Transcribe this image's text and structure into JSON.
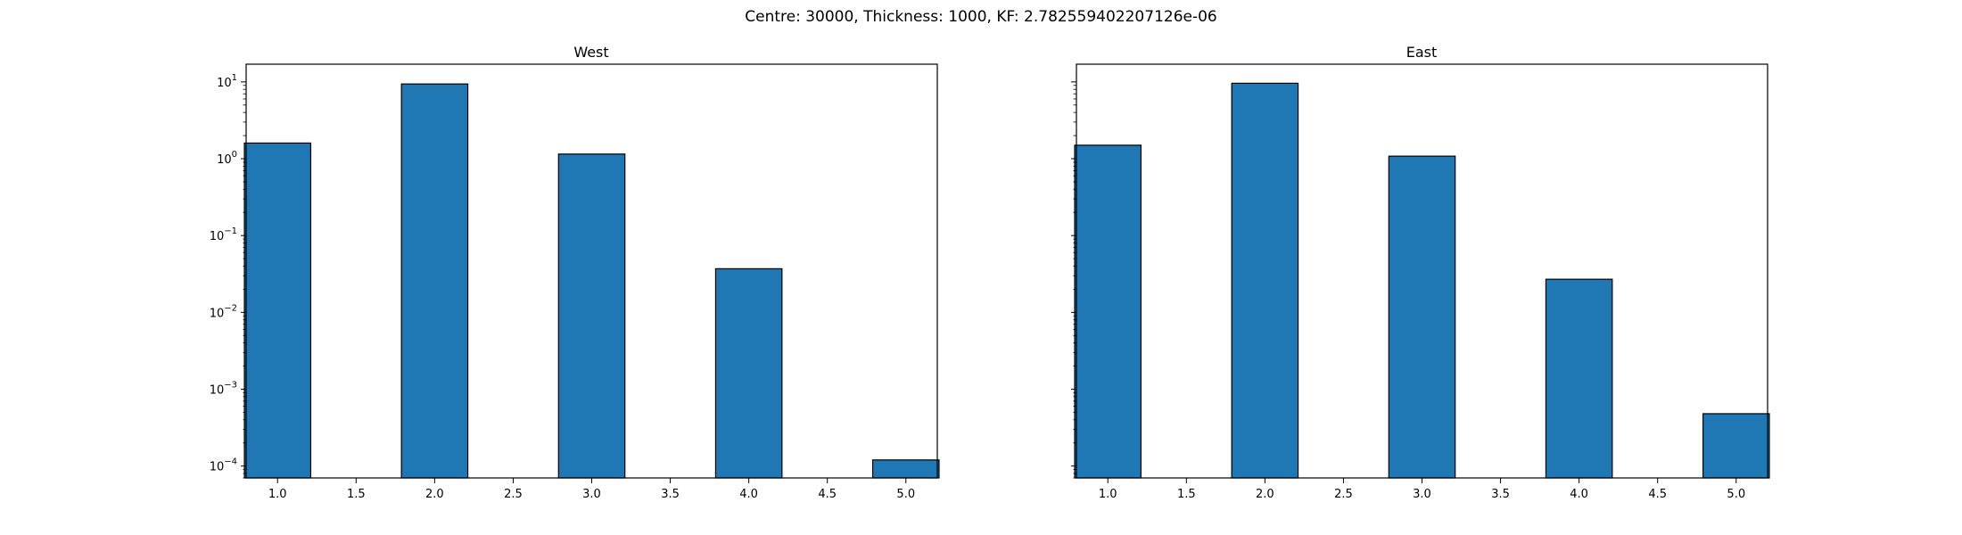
{
  "figure": {
    "suptitle": "Centre: 30000, Thickness: 1000, KF: 2.782559402207126e-06"
  },
  "chart_data": [
    {
      "type": "bar",
      "title": "West",
      "xlabel": "",
      "ylabel": "",
      "yscale": "log",
      "xlim": [
        0.8,
        5.2
      ],
      "ylim": [
        7e-05,
        17
      ],
      "x": [
        1.0,
        2.0,
        3.0,
        4.0,
        5.0
      ],
      "values": [
        1.6,
        9.4,
        1.15,
        0.037,
        0.00012
      ],
      "bar_color": "#1f77b4",
      "edge_color": "#000000",
      "xticks": [
        "1.0",
        "1.5",
        "2.0",
        "2.5",
        "3.0",
        "3.5",
        "4.0",
        "4.5",
        "5.0"
      ],
      "yticks": [
        {
          "base": "10",
          "exp": "1"
        },
        {
          "base": "10",
          "exp": "0"
        },
        {
          "base": "10",
          "exp": "−1"
        },
        {
          "base": "10",
          "exp": "−2"
        },
        {
          "base": "10",
          "exp": "−3"
        },
        {
          "base": "10",
          "exp": "−4"
        }
      ],
      "grid": false
    },
    {
      "type": "bar",
      "title": "East",
      "xlabel": "",
      "ylabel": "",
      "yscale": "log",
      "xlim": [
        0.8,
        5.2
      ],
      "ylim": [
        7e-05,
        17
      ],
      "x": [
        1.0,
        2.0,
        3.0,
        4.0,
        5.0
      ],
      "values": [
        1.5,
        9.6,
        1.08,
        0.027,
        0.00048
      ],
      "bar_color": "#1f77b4",
      "edge_color": "#000000",
      "xticks": [
        "1.0",
        "1.5",
        "2.0",
        "2.5",
        "3.0",
        "3.5",
        "4.0",
        "4.5",
        "5.0"
      ],
      "yticks": [],
      "grid": false
    }
  ]
}
